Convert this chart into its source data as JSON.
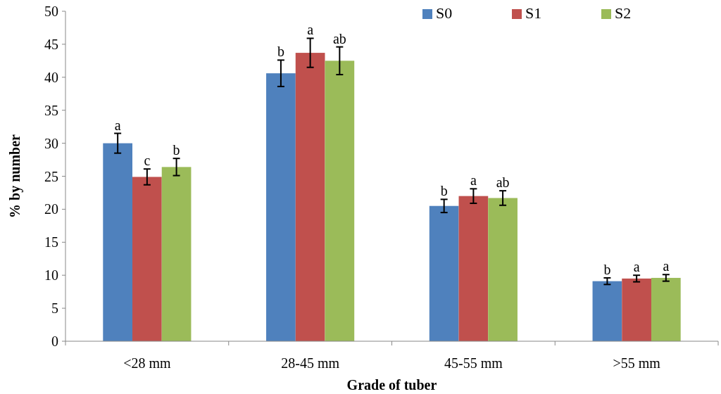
{
  "chart_data": {
    "type": "bar",
    "xlabel": "Grade of tuber",
    "ylabel": "% by number",
    "categories": [
      "<28 mm",
      "28-45 mm",
      "45-55 mm",
      ">55 mm"
    ],
    "series": [
      {
        "name": "S0",
        "color": "#4f81bd",
        "values": [
          30.0,
          40.6,
          20.5,
          9.1
        ],
        "errors": [
          1.5,
          2.0,
          1.0,
          0.5
        ],
        "value_labels": [
          "a",
          "b",
          "b",
          "b"
        ]
      },
      {
        "name": "S1",
        "color": "#c0504d",
        "values": [
          24.9,
          43.7,
          22.0,
          9.5
        ],
        "errors": [
          1.2,
          2.2,
          1.1,
          0.5
        ],
        "value_labels": [
          "c",
          "a",
          "a",
          "a"
        ]
      },
      {
        "name": "S2",
        "color": "#9bbb59",
        "values": [
          26.4,
          42.5,
          21.7,
          9.6
        ],
        "errors": [
          1.3,
          2.1,
          1.1,
          0.5
        ],
        "value_labels": [
          "b",
          "ab",
          "ab",
          "a"
        ]
      }
    ],
    "ylim": [
      0,
      50
    ],
    "yticks": [
      0,
      5,
      10,
      15,
      20,
      25,
      30,
      35,
      40,
      45,
      50
    ],
    "grid": false,
    "legend": "top right"
  }
}
